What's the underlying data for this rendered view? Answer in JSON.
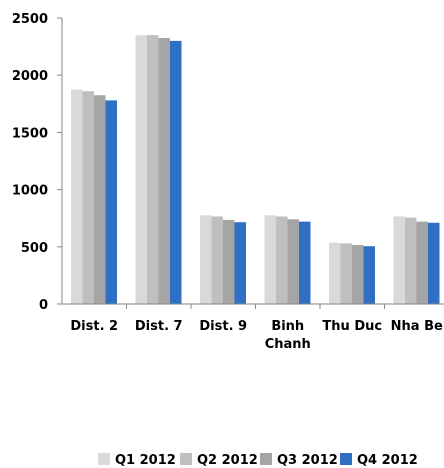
{
  "chart_data": {
    "type": "bar",
    "categories": [
      [
        "Dist. 2"
      ],
      [
        "Dist. 7"
      ],
      [
        "Dist. 9"
      ],
      [
        "Binh",
        "Chanh"
      ],
      [
        "Thu Duc"
      ],
      [
        "Nha Be"
      ]
    ],
    "series": [
      {
        "name": "Q1 2012",
        "color": "#d9d9d9",
        "values": [
          1875,
          2350,
          775,
          775,
          535,
          765
        ]
      },
      {
        "name": "Q2 2012",
        "color": "#bfbfbf",
        "values": [
          1860,
          2350,
          765,
          765,
          530,
          755
        ]
      },
      {
        "name": "Q3 2012",
        "color": "#a5a5a5",
        "values": [
          1825,
          2325,
          735,
          740,
          515,
          720
        ]
      },
      {
        "name": "Q4 2012",
        "color": "#2f6fc4",
        "values": [
          1780,
          2300,
          715,
          720,
          505,
          710
        ]
      }
    ],
    "yticks": [
      "0",
      "500",
      "1000",
      "1500",
      "2000",
      "2500"
    ],
    "ylim": [
      0,
      2500
    ],
    "legend_position": "bottom",
    "grid": false
  }
}
